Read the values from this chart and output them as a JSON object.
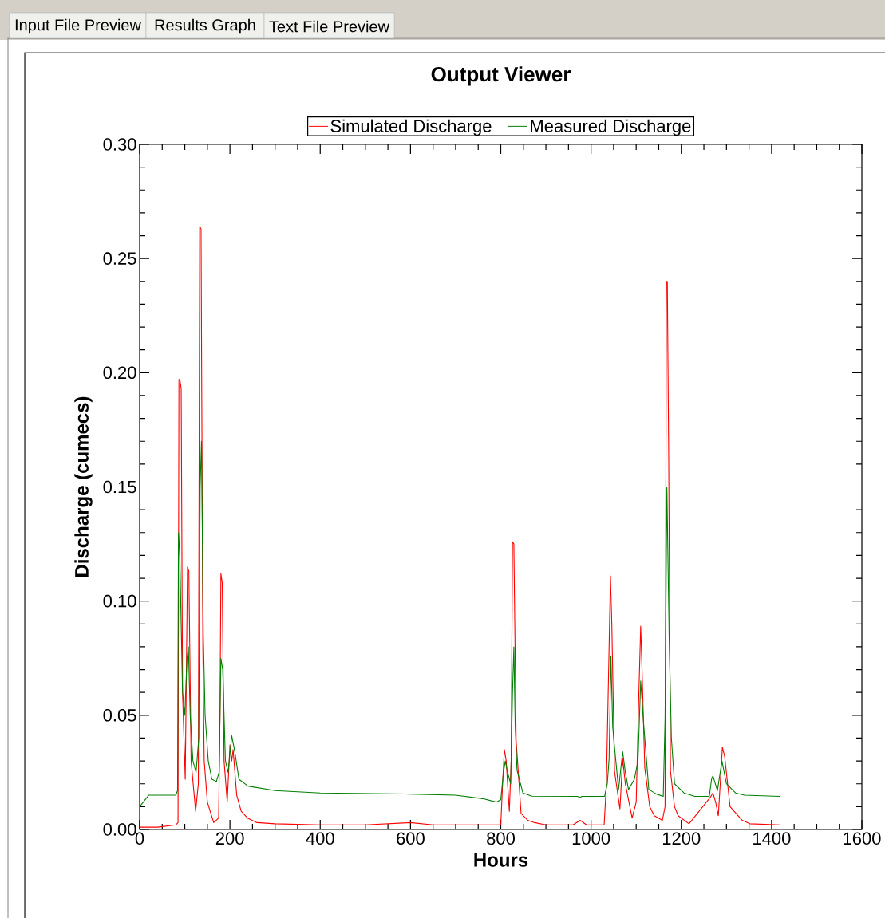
{
  "chart_data": {
    "type": "line",
    "title": "Output Viewer",
    "xlabel": "Hours",
    "ylabel": "Discharge (cumecs)",
    "annotations": [
      "Input File Preview",
      "Results Graph",
      "Text File Preview"
    ],
    "xlim": [
      0,
      1600
    ],
    "xticks": [
      0,
      200,
      400,
      600,
      800,
      1000,
      1200,
      1400,
      1600
    ],
    "ylim": [
      0,
      0.3
    ],
    "yticks": [
      {
        "value": 0,
        "label": "0.00"
      },
      {
        "value": 0.05,
        "label": "0.05"
      },
      {
        "value": 0.1,
        "label": "0.10"
      },
      {
        "value": 0.15,
        "label": "0.15"
      },
      {
        "value": 0.2,
        "label": "0.20"
      },
      {
        "value": 0.25,
        "label": "0.25"
      },
      {
        "value": 0.3,
        "label": "0.30"
      }
    ],
    "grid": false,
    "legend": "top",
    "marker": "none",
    "line_style": "solid",
    "series": [
      {
        "name": "Simulated Discharge",
        "color": "#ff0000",
        "x": [
          0,
          40,
          80,
          85,
          87,
          89,
          92,
          95,
          101,
          106,
          109,
          114,
          124,
          130,
          133,
          136,
          140,
          143,
          150,
          164,
          175,
          178,
          180,
          183,
          187,
          194,
          200,
          204,
          207,
          215,
          225,
          239,
          260,
          300,
          400,
          500,
          600,
          650,
          700,
          800,
          804,
          808,
          812,
          819,
          823,
          826,
          829,
          834,
          845,
          860,
          875,
          900,
          960,
          976,
          990,
          1029,
          1034,
          1040,
          1043,
          1046,
          1052,
          1064,
          1070,
          1076,
          1091,
          1100,
          1106,
          1110,
          1113,
          1119,
          1130,
          1140,
          1158,
          1164,
          1167,
          1169,
          1172,
          1176,
          1185,
          1193,
          1217,
          1264,
          1270,
          1276,
          1282,
          1291,
          1296,
          1308,
          1335,
          1352,
          1418
        ],
        "values": [
          0.001,
          0.001,
          0.002,
          0.003,
          0.197,
          0.197,
          0.193,
          0.06,
          0.022,
          0.115,
          0.113,
          0.03,
          0.008,
          0.02,
          0.264,
          0.263,
          0.08,
          0.03,
          0.012,
          0.003,
          0.005,
          0.05,
          0.112,
          0.108,
          0.03,
          0.012,
          0.037,
          0.03,
          0.035,
          0.015,
          0.008,
          0.005,
          0.003,
          0.0025,
          0.002,
          0.002,
          0.003,
          0.002,
          0.002,
          0.002,
          0.02,
          0.035,
          0.03,
          0.008,
          0.03,
          0.126,
          0.125,
          0.039,
          0.007,
          0.004,
          0.003,
          0.002,
          0.002,
          0.004,
          0.002,
          0.002,
          0.02,
          0.08,
          0.111,
          0.09,
          0.0255,
          0.009,
          0.031,
          0.02,
          0.005,
          0.012,
          0.06,
          0.089,
          0.07,
          0.027,
          0.01,
          0.006,
          0.004,
          0.01,
          0.24,
          0.24,
          0.165,
          0.0255,
          0.01,
          0.006,
          0.0025,
          0.014,
          0.016,
          0.012,
          0.006,
          0.036,
          0.032,
          0.01,
          0.004,
          0.0025,
          0.002
        ]
      },
      {
        "name": "Measured Discharge",
        "color": "#008000",
        "x": [
          0,
          20,
          80,
          84,
          86,
          89,
          92,
          95,
          100,
          105,
          108,
          112,
          118,
          125,
          131,
          134,
          137,
          141,
          145,
          152,
          160,
          170,
          176,
          180,
          184,
          190,
          196,
          204,
          210,
          220,
          240,
          300,
          400,
          600,
          700,
          760,
          790,
          800,
          806,
          810,
          815,
          822,
          826,
          829,
          832,
          836,
          849,
          869,
          970,
          975,
          980,
          1030,
          1036,
          1040,
          1044,
          1048,
          1052,
          1061,
          1070,
          1076,
          1083,
          1096,
          1104,
          1110,
          1117,
          1128,
          1145,
          1160,
          1164,
          1168,
          1173,
          1178,
          1185,
          1206,
          1230,
          1262,
          1267,
          1270,
          1280,
          1290,
          1300,
          1320,
          1340,
          1418
        ],
        "values": [
          0.01,
          0.015,
          0.015,
          0.017,
          0.13,
          0.12,
          0.09,
          0.06,
          0.05,
          0.075,
          0.08,
          0.05,
          0.03,
          0.025,
          0.04,
          0.15,
          0.17,
          0.085,
          0.05,
          0.03,
          0.022,
          0.021,
          0.025,
          0.075,
          0.07,
          0.03,
          0.025,
          0.041,
          0.035,
          0.022,
          0.019,
          0.017,
          0.016,
          0.0155,
          0.015,
          0.0135,
          0.012,
          0.013,
          0.025,
          0.03,
          0.025,
          0.02,
          0.06,
          0.08,
          0.045,
          0.026,
          0.016,
          0.0146,
          0.0145,
          0.014,
          0.0145,
          0.0145,
          0.02,
          0.031,
          0.076,
          0.045,
          0.036,
          0.0175,
          0.034,
          0.025,
          0.0175,
          0.022,
          0.03,
          0.065,
          0.045,
          0.0175,
          0.0155,
          0.0145,
          0.049,
          0.15,
          0.085,
          0.04,
          0.02,
          0.016,
          0.0145,
          0.0145,
          0.022,
          0.0235,
          0.017,
          0.03,
          0.02,
          0.016,
          0.015,
          0.0145
        ]
      }
    ]
  }
}
